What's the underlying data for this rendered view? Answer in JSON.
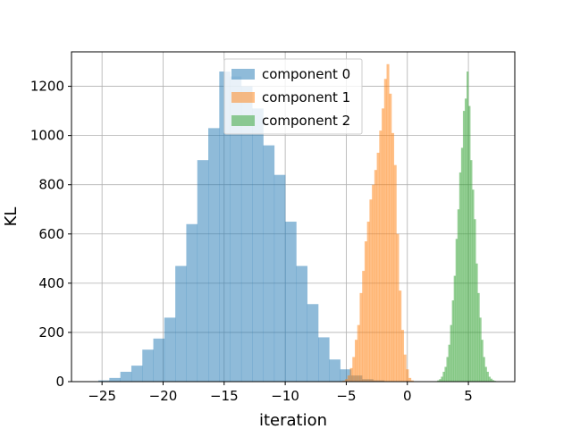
{
  "chart_data": {
    "type": "bar",
    "title": "",
    "xlabel": "iteration",
    "ylabel": "KL",
    "xlim": [
      -27.5,
      8.8
    ],
    "ylim": [
      0,
      1340
    ],
    "xticks": [
      -25,
      -20,
      -15,
      -10,
      -5,
      0,
      5
    ],
    "xtick_labels": [
      "−25",
      "−20",
      "−15",
      "−10",
      "−5",
      "0",
      "5"
    ],
    "yticks": [
      0,
      200,
      400,
      600,
      800,
      1000,
      1200
    ],
    "ytick_labels": [
      "0",
      "200",
      "400",
      "600",
      "800",
      "1000",
      "1200"
    ],
    "grid": true,
    "legend_position": "top-center",
    "series": [
      {
        "name": "component 0",
        "color": "#1f77b4",
        "bin_start": -25.3,
        "bin_width": 0.9,
        "values": [
          5,
          15,
          40,
          65,
          130,
          175,
          260,
          470,
          640,
          900,
          1030,
          1260,
          1240,
          1200,
          1110,
          960,
          840,
          650,
          470,
          315,
          180,
          90,
          50,
          25,
          10,
          5
        ]
      },
      {
        "name": "component 1",
        "color": "#ff7f0e",
        "bin_start": -5.5,
        "bin_width": 0.2,
        "values": [
          2,
          4,
          10,
          25,
          55,
          100,
          170,
          230,
          360,
          450,
          570,
          650,
          740,
          800,
          860,
          930,
          1020,
          1110,
          1230,
          1290,
          1170,
          1010,
          880,
          600,
          370,
          210,
          110,
          50,
          15,
          5
        ]
      },
      {
        "name": "component 2",
        "color": "#2ca02c",
        "bin_start": 2.3,
        "bin_width": 0.15,
        "values": [
          2,
          5,
          10,
          20,
          40,
          60,
          100,
          150,
          230,
          330,
          430,
          580,
          700,
          850,
          950,
          1100,
          1150,
          1260,
          1120,
          900,
          780,
          660,
          480,
          360,
          260,
          170,
          100,
          60,
          40,
          20,
          12,
          6,
          3
        ]
      }
    ]
  }
}
